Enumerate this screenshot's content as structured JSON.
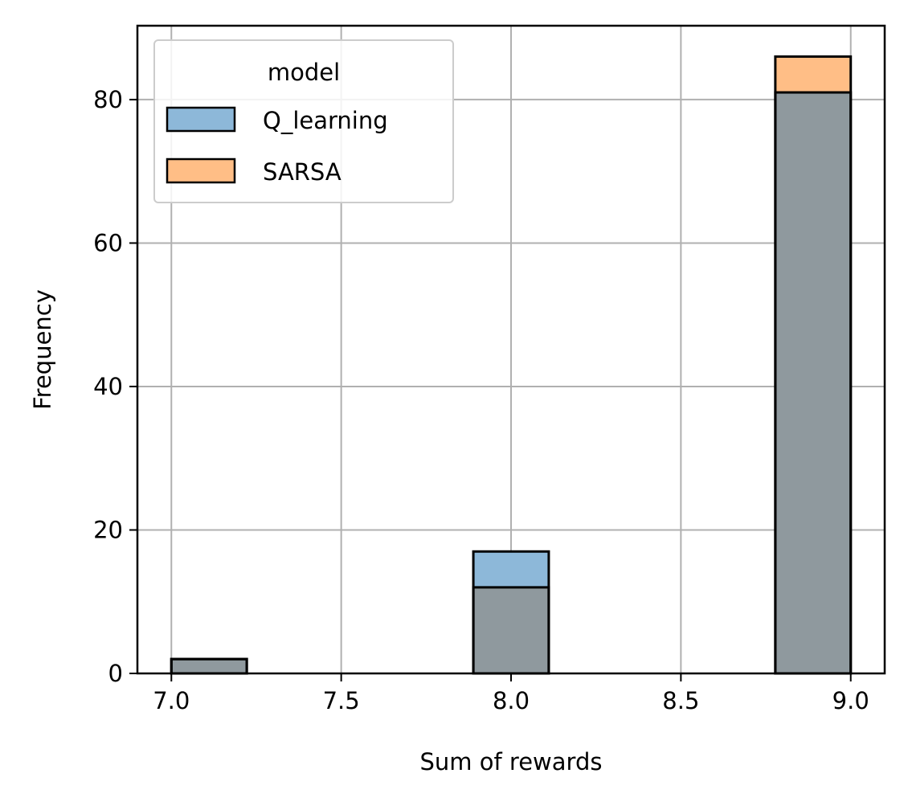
{
  "chart_data": {
    "type": "bar",
    "subtype": "overlaid-histogram",
    "xlabel": "Sum of rewards",
    "ylabel": "Frequency",
    "xlim": [
      6.9,
      9.1
    ],
    "ylim": [
      0,
      90.3
    ],
    "x_ticks": [
      7.0,
      7.5,
      8.0,
      8.5,
      9.0
    ],
    "x_tick_labels": [
      "7.0",
      "7.5",
      "8.0",
      "8.5",
      "9.0"
    ],
    "y_ticks": [
      0,
      20,
      40,
      60,
      80
    ],
    "y_tick_labels": [
      "0",
      "20",
      "40",
      "60",
      "80"
    ],
    "grid": true,
    "legend": {
      "title": "model",
      "position": "top-left"
    },
    "bins": [
      [
        7.0,
        7.222
      ],
      [
        7.889,
        8.111
      ],
      [
        8.778,
        9.0
      ]
    ],
    "series": [
      {
        "name": "Q_learning",
        "color": "#1f77b4",
        "fill": "#8db8d9",
        "values": [
          2,
          17,
          81
        ]
      },
      {
        "name": "SARSA",
        "color": "#ff7f0e",
        "fill": "#ffbe86",
        "values": [
          2,
          12,
          86
        ]
      }
    ],
    "overlap_fill": "#8f999e"
  }
}
